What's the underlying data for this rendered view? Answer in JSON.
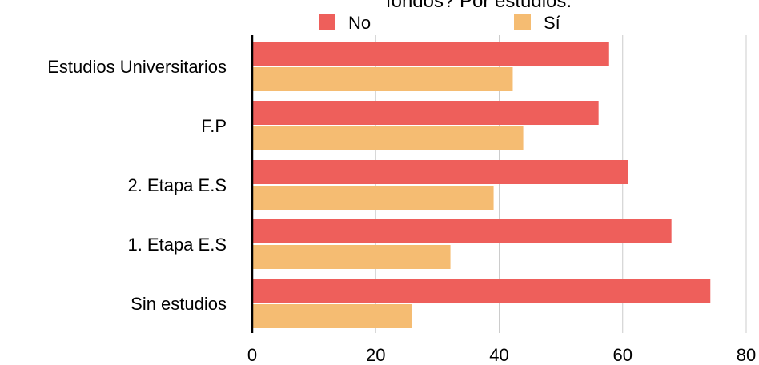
{
  "chart_data": {
    "type": "bar",
    "orientation": "horizontal",
    "title": "fondos? Por estudios.",
    "categories": [
      "Estudios Universitarios",
      "F.P",
      "2. Etapa E.S",
      "1. Etapa E.S",
      "Sin estudios"
    ],
    "series": [
      {
        "name": "No",
        "color": "#ee5f5b",
        "values": [
          57.8,
          56.1,
          60.9,
          67.9,
          74.2
        ]
      },
      {
        "name": "Sí",
        "color": "#f5bc72",
        "values": [
          42.2,
          43.9,
          39.1,
          32.1,
          25.8
        ]
      }
    ],
    "xlim": [
      0,
      80
    ],
    "xticks": [
      "0",
      "20",
      "40",
      "60",
      "80"
    ],
    "grid": true,
    "legend_position": "top"
  }
}
